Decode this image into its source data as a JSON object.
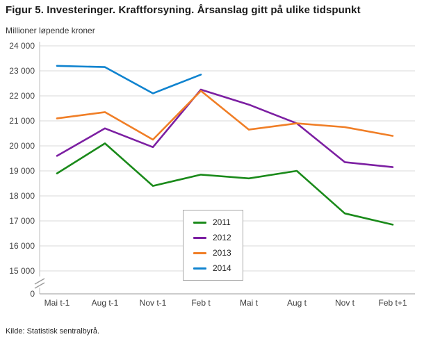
{
  "header": {
    "title": "Figur 5. Investeringer. Kraftforsyning. Årsanslag gitt på ulike tidspunkt",
    "unit_label": "Millioner løpende kroner"
  },
  "footer": {
    "source": "Kilde: Statistisk sentralbyrå."
  },
  "chart_data": {
    "type": "line",
    "title": "Figur 5. Investeringer. Kraftforsyning. Årsanslag gitt på ulike tidspunkt",
    "ylabel": "Millioner løpende kroner",
    "xlabel": "",
    "categories": [
      "Mai t-1",
      "Aug t-1",
      "Nov t-1",
      "Feb t",
      "Mai t",
      "Aug t",
      "Nov t",
      "Feb t+1"
    ],
    "series": [
      {
        "name": "2011",
        "color": "#1a8a1a",
        "values": [
          18900,
          20100,
          18400,
          18850,
          18700,
          19000,
          17300,
          16850
        ]
      },
      {
        "name": "2012",
        "color": "#7c1fa2",
        "values": [
          19600,
          20700,
          19950,
          22250,
          21650,
          20900,
          19350,
          19150
        ]
      },
      {
        "name": "2013",
        "color": "#f07e26",
        "values": [
          21100,
          21350,
          20250,
          22200,
          20650,
          20900,
          20750,
          20400
        ]
      },
      {
        "name": "2014",
        "color": "#0f83cf",
        "values": [
          23200,
          23150,
          22100,
          22850
        ]
      }
    ],
    "ylim": [
      15000,
      24000
    ],
    "ytick_step": 1000,
    "zero_label": "0",
    "y_axis_break": true,
    "grid": true,
    "legend_position": "bottom-center",
    "gridline_color": "#d9d9d9",
    "axis_color": "#9a9a9a"
  }
}
